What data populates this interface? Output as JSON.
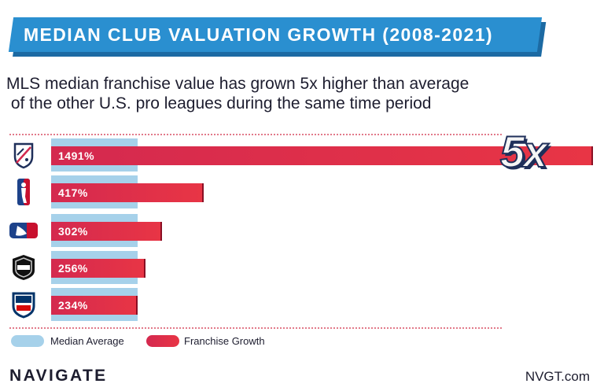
{
  "chart_data": {
    "type": "bar",
    "orientation": "horizontal",
    "title": "MEDIAN CLUB VALUATION GROWTH (2008-2021)",
    "subtitle_lines": [
      "MLS median franchise value has grown 5x higher than average",
      " of the other U.S. pro leagues during the same time period"
    ],
    "categories": [
      "MLS",
      "NBA",
      "MLB",
      "NHL",
      "NFL"
    ],
    "series": [
      {
        "name": "Median Average",
        "values": [
          302,
          302,
          302,
          302,
          302
        ],
        "color": "#a6d1ea"
      },
      {
        "name": "Franchise Growth",
        "values": [
          1491,
          417,
          302,
          256,
          234
        ],
        "color": "#e0304a"
      }
    ],
    "data_labels": [
      "1491%",
      "417%",
      "302%",
      "256%",
      "234%"
    ],
    "xlim": [
      0,
      1491
    ],
    "annotation": "5x",
    "legend_position": "bottom-left",
    "grid": false
  },
  "footer": {
    "brand": "NAVIGATE",
    "site": "NVGT.com"
  },
  "logo_icons": [
    "mls-logo-icon",
    "nba-logo-icon",
    "mlb-logo-icon",
    "nhl-logo-icon",
    "nfl-logo-icon"
  ]
}
